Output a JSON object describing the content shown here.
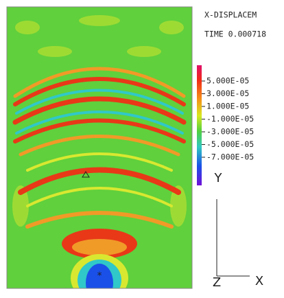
{
  "header": {
    "title": "X-DISPLACEM",
    "time": "TIME 0.000718"
  },
  "legend": {
    "labels": [
      "5.000E-05",
      "3.000E-05",
      "1.000E-05",
      "-1.000E-05",
      "-3.000E-05",
      "-5.000E-05",
      "-7.000E-05"
    ]
  },
  "axes": {
    "y": "Y",
    "z": "Z",
    "x": "X"
  }
}
